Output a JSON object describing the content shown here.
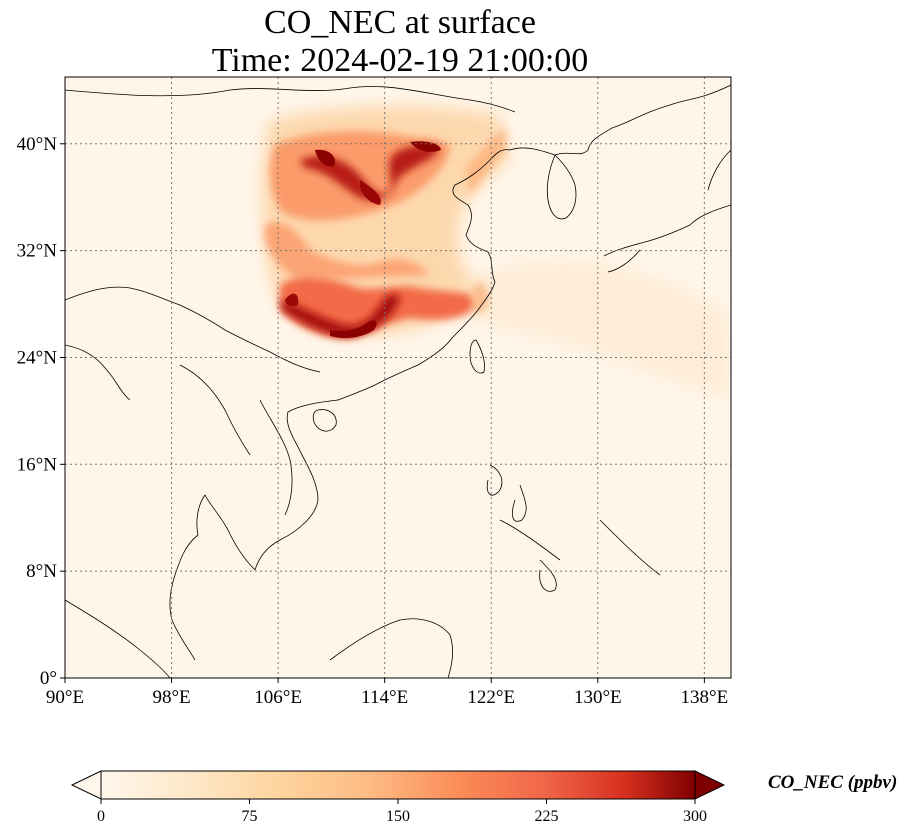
{
  "title_line1": "CO_NEC at surface",
  "title_line2": "Time: 2024-02-19 21:00:00",
  "map": {
    "lon_range": [
      90,
      140
    ],
    "lat_range": [
      0,
      45
    ],
    "lon_ticks": [
      90,
      98,
      106,
      114,
      122,
      130,
      138
    ],
    "lat_ticks": [
      0,
      8,
      16,
      24,
      32,
      40
    ],
    "lon_tick_labels": [
      "90°E",
      "98°E",
      "106°E",
      "114°E",
      "122°E",
      "130°E",
      "138°E"
    ],
    "lat_tick_labels": [
      "0°",
      "8°N",
      "16°N",
      "24°N",
      "32°N",
      "40°N"
    ],
    "gridlines": true,
    "colormap": "OrRd"
  },
  "colorbar": {
    "label": "CO_NEC (ppbv)",
    "ticks": [
      0,
      75,
      150,
      225,
      300
    ],
    "tick_labels": [
      "0",
      "75",
      "150",
      "225",
      "300"
    ],
    "range": [
      0,
      300
    ],
    "extend": "both"
  },
  "colors": {
    "background": "#fff6ea",
    "low": "#fff7ec",
    "high": "#7f0000",
    "grid": "#777777"
  }
}
